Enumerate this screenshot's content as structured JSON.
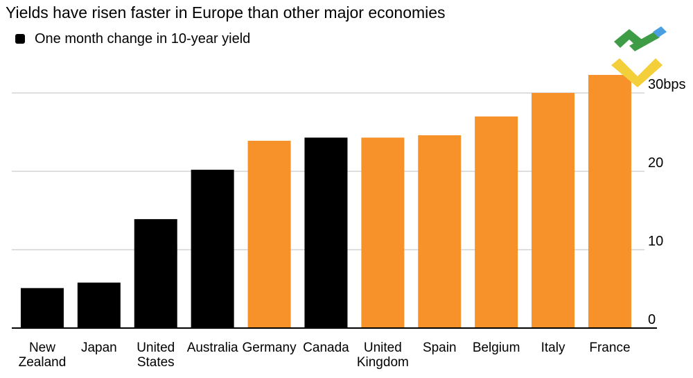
{
  "title": "Yields have risen faster in Europe than other major economies",
  "legend": {
    "label": "One month change in 10-year yield"
  },
  "colors": {
    "non_european": "#000000",
    "european": "#f7922a",
    "grid": "#d3d3d3",
    "axis": "#000000"
  },
  "logo": {
    "icon": "green-yellow-blue-logo-icon"
  },
  "chart_data": {
    "type": "bar",
    "categories": [
      [
        "New",
        "Zealand"
      ],
      [
        "Japan"
      ],
      [
        "United",
        "States"
      ],
      [
        "Australia"
      ],
      [
        "Germany"
      ],
      [
        "Canada"
      ],
      [
        "United",
        "Kingdom"
      ],
      [
        "Spain"
      ],
      [
        "Belgium"
      ],
      [
        "Italy"
      ],
      [
        "France"
      ]
    ],
    "values": [
      5.1,
      5.8,
      13.9,
      20.2,
      23.9,
      24.3,
      24.3,
      24.6,
      27.0,
      30.0,
      32.3
    ],
    "european": [
      false,
      false,
      false,
      false,
      true,
      false,
      true,
      true,
      true,
      true,
      true
    ],
    "ylim": [
      0,
      30
    ],
    "yticks": [
      0,
      10,
      20,
      30
    ],
    "ytick_labels": [
      "0",
      "10",
      "20",
      "30bps"
    ],
    "grid": true,
    "y_axis_position": "right",
    "legend_position": "top-left"
  }
}
